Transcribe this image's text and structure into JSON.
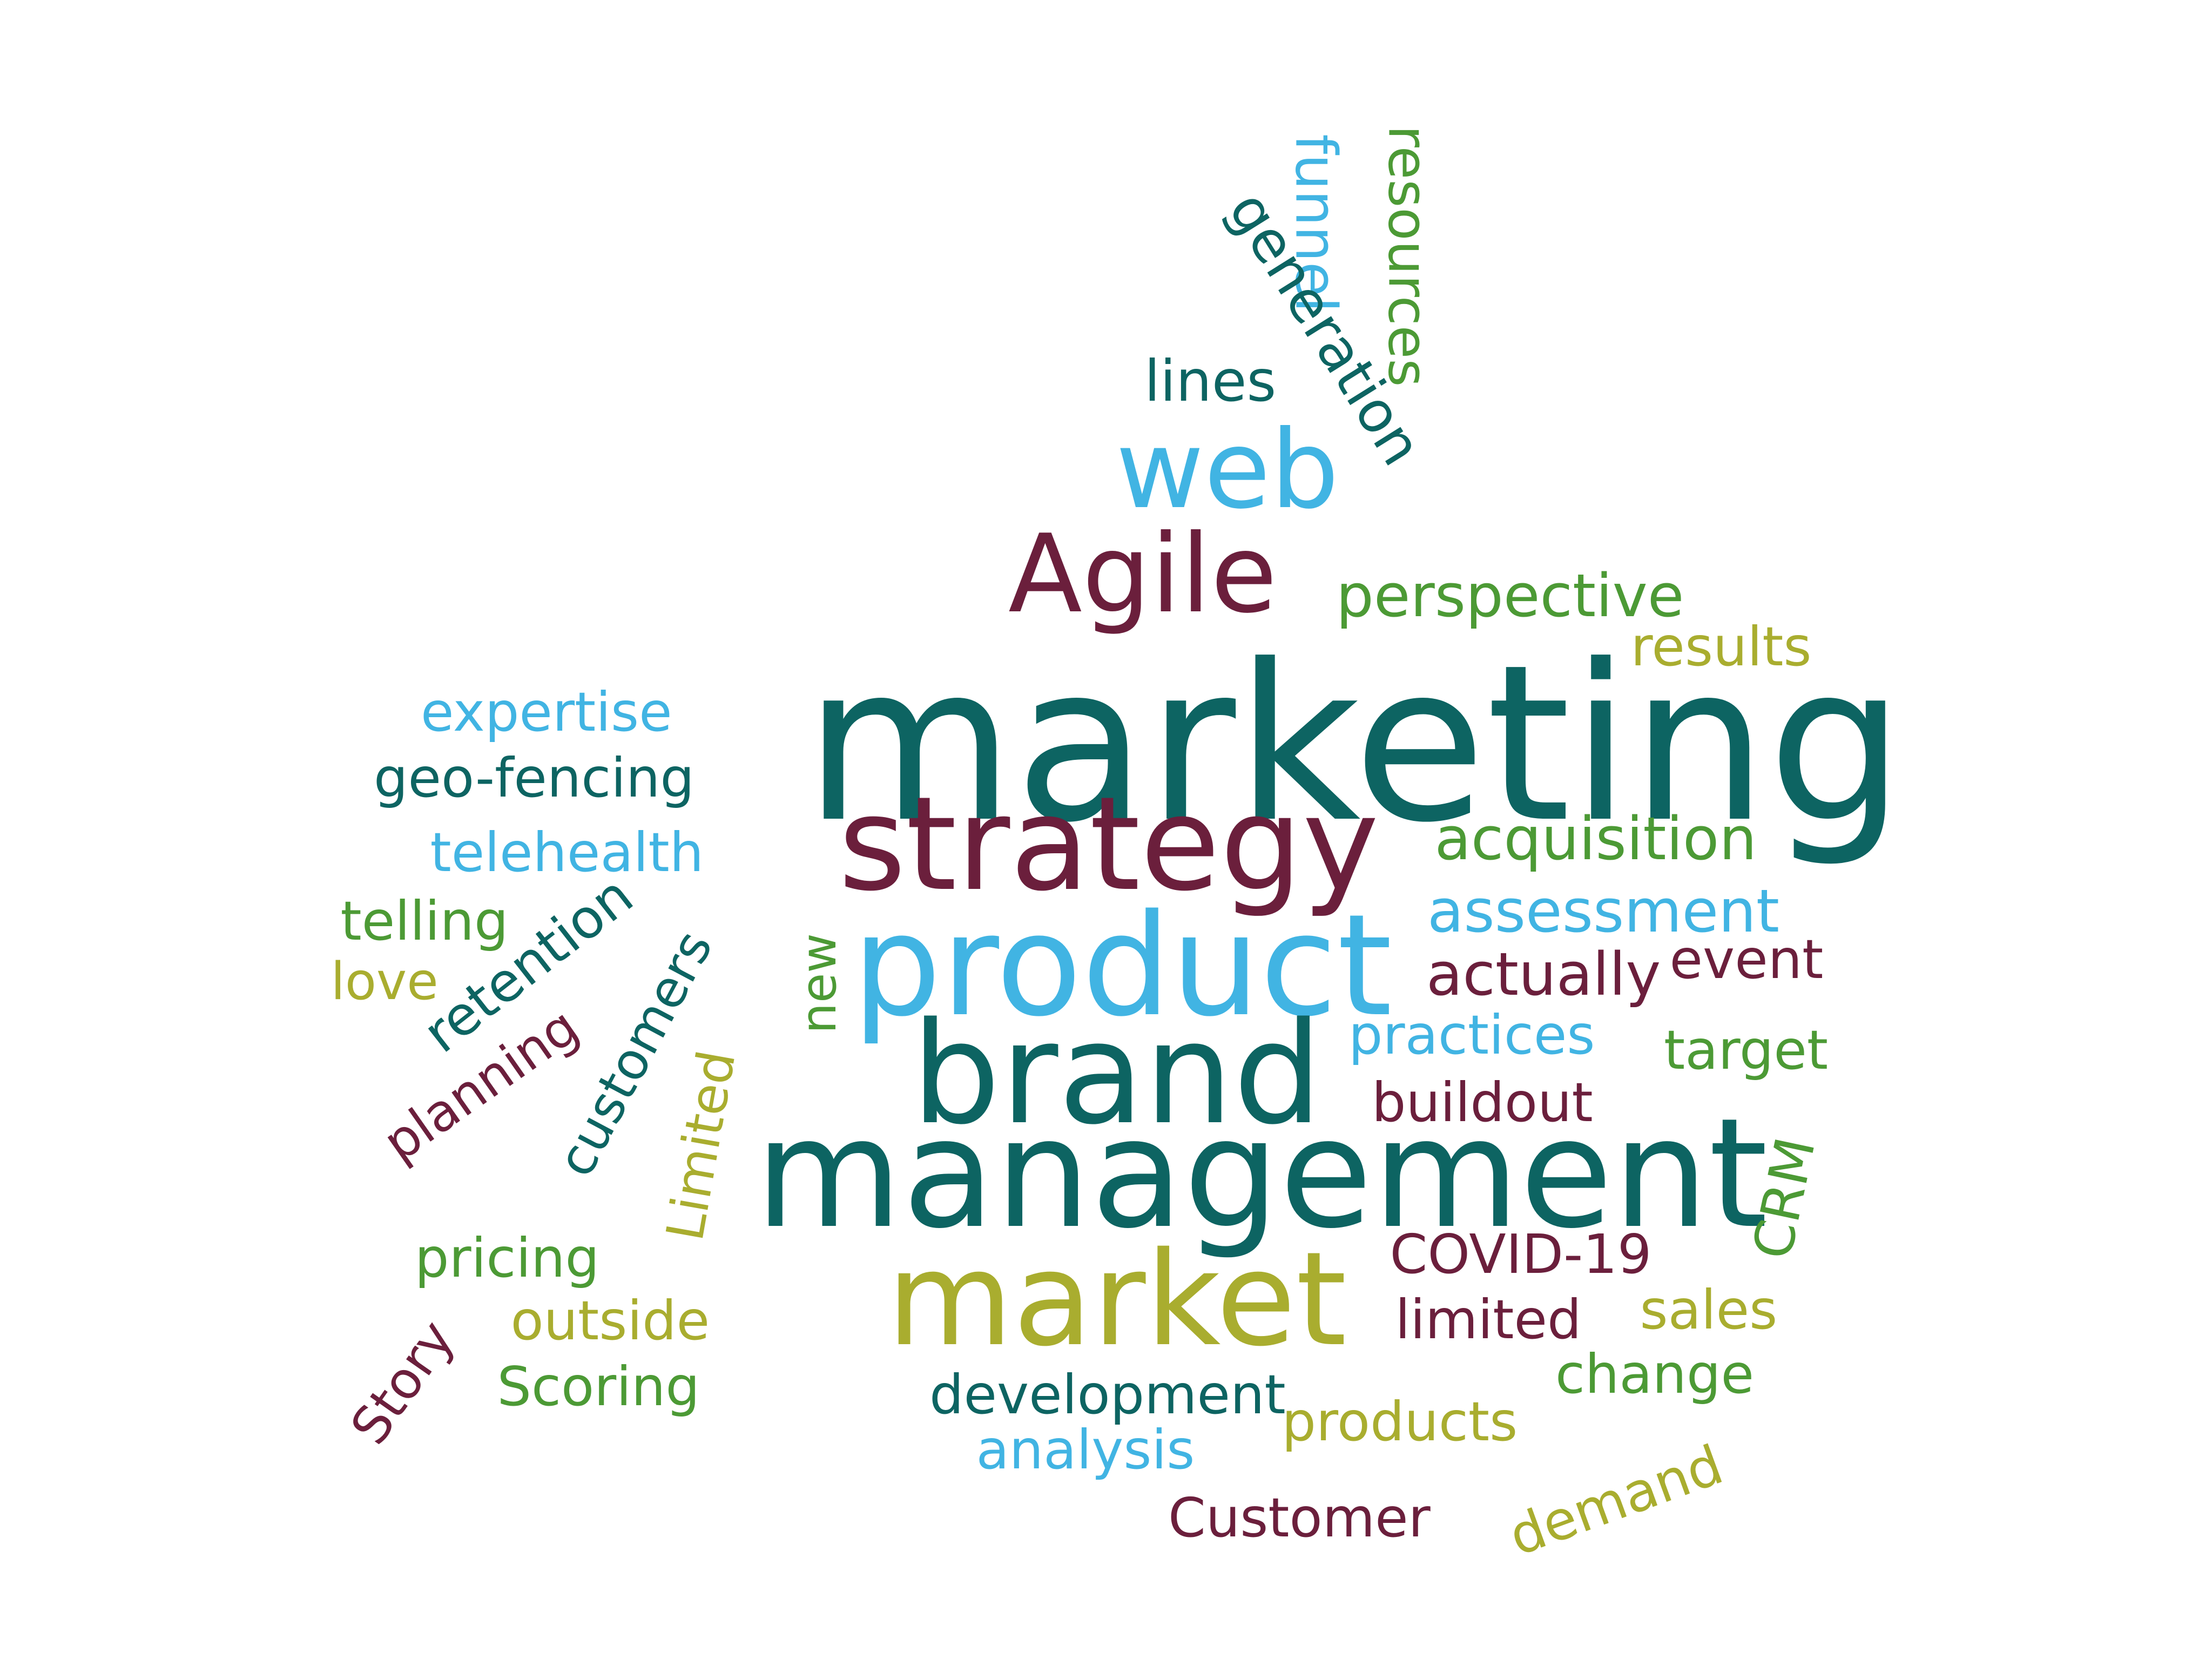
{
  "palette": {
    "teal": "#0d6462",
    "maroon": "#6b1f3c",
    "light_blue": "#41b4e3",
    "green": "#4c9a35",
    "olive": "#a9ad2f"
  },
  "words": [
    {
      "text": "marketing",
      "color": "teal"
    },
    {
      "text": "management",
      "color": "teal"
    },
    {
      "text": "product",
      "color": "light_blue"
    },
    {
      "text": "brand",
      "color": "teal"
    },
    {
      "text": "strategy",
      "color": "maroon"
    },
    {
      "text": "market",
      "color": "olive"
    },
    {
      "text": "Agile",
      "color": "maroon"
    },
    {
      "text": "web",
      "color": "light_blue"
    },
    {
      "text": "lines",
      "color": "teal"
    },
    {
      "text": "funnel",
      "color": "light_blue"
    },
    {
      "text": "generation",
      "color": "teal"
    },
    {
      "text": "resources",
      "color": "green"
    },
    {
      "text": "perspective",
      "color": "green"
    },
    {
      "text": "results",
      "color": "olive"
    },
    {
      "text": "acquisition",
      "color": "green"
    },
    {
      "text": "assessment",
      "color": "light_blue"
    },
    {
      "text": "actually",
      "color": "maroon"
    },
    {
      "text": "event",
      "color": "maroon"
    },
    {
      "text": "practices",
      "color": "light_blue"
    },
    {
      "text": "target",
      "color": "green"
    },
    {
      "text": "buildout",
      "color": "maroon"
    },
    {
      "text": "CRM",
      "color": "green"
    },
    {
      "text": "COVID-19",
      "color": "maroon"
    },
    {
      "text": "limited",
      "color": "maroon"
    },
    {
      "text": "sales",
      "color": "olive"
    },
    {
      "text": "change",
      "color": "green"
    },
    {
      "text": "development",
      "color": "teal"
    },
    {
      "text": "products",
      "color": "olive"
    },
    {
      "text": "analysis",
      "color": "light_blue"
    },
    {
      "text": "demand",
      "color": "olive"
    },
    {
      "text": "Customer",
      "color": "maroon"
    },
    {
      "text": "new",
      "color": "green"
    },
    {
      "text": "expertise",
      "color": "light_blue"
    },
    {
      "text": "geo-fencing",
      "color": "teal"
    },
    {
      "text": "telehealth",
      "color": "light_blue"
    },
    {
      "text": "telling",
      "color": "green"
    },
    {
      "text": "love",
      "color": "olive"
    },
    {
      "text": "retention",
      "color": "teal"
    },
    {
      "text": "customers",
      "color": "teal"
    },
    {
      "text": "planning",
      "color": "maroon"
    },
    {
      "text": "Limited",
      "color": "olive"
    },
    {
      "text": "pricing",
      "color": "green"
    },
    {
      "text": "outside",
      "color": "olive"
    },
    {
      "text": "Story",
      "color": "maroon"
    },
    {
      "text": "Scoring",
      "color": "green"
    }
  ]
}
